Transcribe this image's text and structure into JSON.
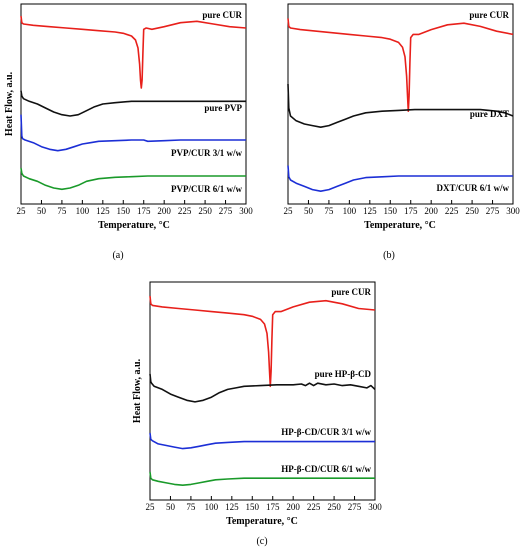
{
  "colors": {
    "red": "#e8201b",
    "black": "#111111",
    "blue": "#1c2fd6",
    "green": "#1a9a2a"
  },
  "chart_data": [
    {
      "type": "line",
      "panel_label": "(a)",
      "xlabel": "Temperature, °C",
      "ylabel": "Heat Flow, a.u.",
      "xlim": [
        25,
        300
      ],
      "xticks": [
        25,
        50,
        75,
        100,
        125,
        150,
        175,
        200,
        225,
        250,
        275,
        300
      ],
      "series": [
        {
          "name": "pure CUR",
          "color": "red",
          "x": [
            25,
            26,
            28,
            40,
            60,
            80,
            100,
            120,
            140,
            150,
            160,
            165,
            168,
            170,
            171,
            172,
            173,
            174,
            175,
            178,
            185,
            200,
            220,
            240,
            260,
            280,
            300
          ],
          "y": [
            96,
            91,
            90,
            89,
            88,
            87,
            86,
            85,
            84,
            83,
            81,
            78,
            72,
            60,
            48,
            42,
            48,
            68,
            86,
            87,
            86,
            88,
            91,
            92,
            90,
            88,
            87
          ]
        },
        {
          "name": "pure PVP",
          "color": "black",
          "x": [
            25,
            26,
            28,
            35,
            45,
            55,
            65,
            75,
            85,
            95,
            105,
            115,
            125,
            140,
            160,
            180,
            200,
            220,
            240,
            260,
            280,
            300
          ],
          "y": [
            40,
            36,
            34,
            32,
            30,
            27,
            24,
            22,
            21,
            22,
            25,
            28,
            30,
            31,
            32,
            32,
            32,
            32,
            32,
            32,
            32,
            32
          ]
        },
        {
          "name": "PVP/CUR 3/1 w/w",
          "color": "blue",
          "x": [
            25,
            26,
            27,
            30,
            40,
            50,
            60,
            70,
            80,
            90,
            100,
            110,
            120,
            140,
            160,
            175,
            180,
            200,
            220,
            240,
            260,
            280,
            300
          ],
          "y": [
            22,
            6,
            4,
            3,
            1,
            -2,
            -4,
            -5,
            -4,
            -2,
            0,
            1,
            2,
            2.5,
            3,
            3,
            2,
            2.5,
            3,
            3,
            3,
            3,
            3
          ]
        },
        {
          "name": "PVP/CUR 6/1 w/w",
          "color": "green",
          "x": [
            25,
            26,
            28,
            35,
            45,
            55,
            65,
            75,
            85,
            95,
            105,
            120,
            140,
            160,
            180,
            200,
            220,
            240,
            260,
            280,
            300
          ],
          "y": [
            -18,
            -22,
            -24,
            -26,
            -28,
            -31,
            -33,
            -34,
            -33,
            -31,
            -28,
            -26,
            -25,
            -24.5,
            -24,
            -24,
            -24,
            -24,
            -24,
            -24,
            -24
          ]
        }
      ]
    },
    {
      "type": "line",
      "panel_label": "(b)",
      "xlabel": "Temperature, °C",
      "ylabel": "",
      "xlim": [
        25,
        300
      ],
      "xticks": [
        25,
        50,
        75,
        100,
        125,
        150,
        175,
        200,
        225,
        250,
        275,
        300
      ],
      "series": [
        {
          "name": "pure CUR",
          "color": "red",
          "x": [
            25,
            26,
            28,
            40,
            60,
            80,
            100,
            120,
            140,
            150,
            160,
            165,
            168,
            170,
            171,
            172,
            173,
            174,
            175,
            178,
            185,
            200,
            220,
            240,
            260,
            280,
            300
          ],
          "y": [
            96,
            91,
            90,
            89,
            88,
            87,
            86,
            85,
            84,
            83,
            81,
            78,
            72,
            60,
            48,
            38,
            48,
            68,
            84,
            86,
            86,
            89,
            92,
            93,
            91,
            88,
            86
          ]
        },
        {
          "name": "pure DXT",
          "color": "black",
          "x": [
            25,
            26,
            28,
            35,
            45,
            55,
            65,
            75,
            85,
            95,
            105,
            120,
            140,
            160,
            180,
            200,
            220,
            240,
            260,
            280,
            290,
            300
          ],
          "y": [
            55,
            40,
            35,
            32,
            30,
            29,
            28,
            29,
            31,
            33,
            35,
            37,
            38,
            38.5,
            39,
            39,
            39,
            39,
            39,
            38,
            37,
            35
          ]
        },
        {
          "name": "DXT/CUR 6/1 w/w",
          "color": "blue",
          "x": [
            25,
            26,
            28,
            35,
            45,
            55,
            65,
            75,
            85,
            95,
            105,
            120,
            140,
            160,
            180,
            200,
            220,
            240,
            260,
            280,
            300
          ],
          "y": [
            4,
            -3,
            -5,
            -7,
            -9,
            -11,
            -12,
            -11,
            -9,
            -7,
            -5,
            -3.5,
            -3,
            -2.5,
            -2.5,
            -2.5,
            -2.5,
            -2.5,
            -2.5,
            -2.5,
            -2.5
          ]
        }
      ]
    },
    {
      "type": "line",
      "panel_label": "(c)",
      "xlabel": "Temperature, °C",
      "ylabel": "Heat Flow, a.u.",
      "xlim": [
        25,
        300
      ],
      "xticks": [
        25,
        50,
        75,
        100,
        125,
        150,
        175,
        200,
        225,
        250,
        275,
        300
      ],
      "series": [
        {
          "name": "pure CUR",
          "color": "red",
          "x": [
            25,
            26,
            28,
            40,
            60,
            80,
            100,
            120,
            140,
            150,
            160,
            165,
            168,
            170,
            171,
            172,
            173,
            174,
            175,
            178,
            185,
            200,
            220,
            240,
            260,
            280,
            300
          ],
          "y": [
            96,
            91,
            90,
            89,
            88,
            87,
            86,
            85,
            84,
            83,
            81,
            78,
            72,
            60,
            48,
            38,
            48,
            68,
            84,
            86,
            86,
            89,
            92,
            93,
            91,
            88,
            87
          ]
        },
        {
          "name": "pure HP-β-CD",
          "color": "black",
          "x": [
            25,
            26,
            27,
            30,
            40,
            50,
            60,
            70,
            80,
            90,
            100,
            110,
            120,
            130,
            140,
            160,
            180,
            200,
            210,
            215,
            220,
            225,
            230,
            240,
            250,
            260,
            270,
            280,
            290,
            295,
            300
          ],
          "y": [
            46,
            41,
            40,
            38,
            36,
            33,
            31,
            29,
            28,
            29,
            31,
            34,
            36,
            37,
            38,
            38.5,
            39,
            39,
            39.5,
            38.5,
            40,
            38.5,
            40,
            39,
            39.5,
            38.5,
            39,
            38,
            37,
            38.5,
            36
          ]
        },
        {
          "name": "HP-β-CD/CUR 3/1 w/w",
          "color": "blue",
          "x": [
            25,
            26,
            28,
            35,
            45,
            55,
            65,
            75,
            85,
            95,
            105,
            120,
            140,
            160,
            180,
            200,
            220,
            240,
            260,
            280,
            300
          ],
          "y": [
            8,
            4,
            3,
            1,
            0,
            -1,
            -2,
            -1.5,
            -0.5,
            0.5,
            1.5,
            2,
            2.5,
            2.5,
            2.5,
            2.5,
            2.5,
            2.5,
            2.5,
            2.5,
            2.5
          ]
        },
        {
          "name": "HP-β-CD/CUR 6/1 w/w",
          "color": "green",
          "x": [
            25,
            26,
            28,
            35,
            45,
            55,
            65,
            75,
            85,
            95,
            105,
            120,
            140,
            160,
            180,
            200,
            220,
            240,
            260,
            280,
            300
          ],
          "y": [
            -17,
            -21,
            -22,
            -23,
            -24,
            -25,
            -25.5,
            -25,
            -24,
            -23,
            -22,
            -21.5,
            -21,
            -21,
            -21,
            -21,
            -21,
            -21,
            -21,
            -21,
            -21
          ]
        }
      ]
    }
  ]
}
